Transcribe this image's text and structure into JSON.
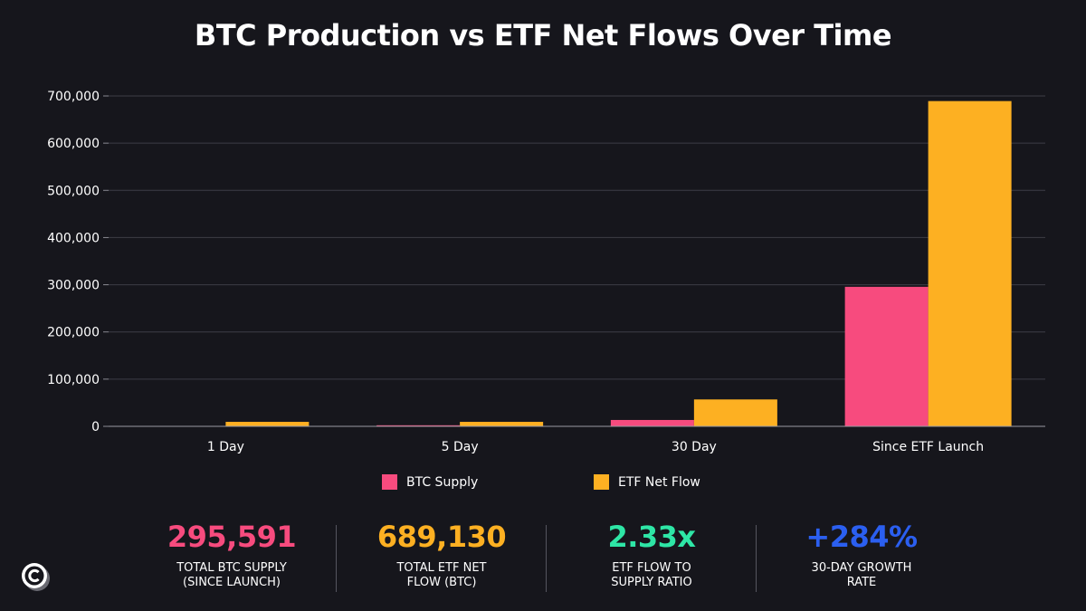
{
  "title": "BTC Production vs ETF Net Flows Over Time",
  "chart_data": {
    "type": "bar",
    "title": "BTC Production vs ETF Net Flows Over Time",
    "categories": [
      "1 Day",
      "5 Day",
      "30 Day",
      "Since ETF Launch"
    ],
    "series": [
      {
        "name": "BTC Supply",
        "color": "#f74b7e",
        "values": [
          450,
          2250,
          13500,
          295591
        ]
      },
      {
        "name": "ETF Net Flow",
        "color": "#fdb022",
        "values": [
          9500,
          9500,
          57000,
          689130
        ]
      }
    ],
    "ylim": [
      0,
      700000
    ],
    "yticks": [
      0,
      100000,
      200000,
      300000,
      400000,
      500000,
      600000,
      700000
    ],
    "ytick_labels": [
      "0",
      "100,000",
      "200,000",
      "300,000",
      "400,000",
      "500,000",
      "600,000",
      "700,000"
    ],
    "xlabel": "",
    "ylabel": "",
    "grid": true,
    "legend": "bottom-center"
  },
  "legend": [
    {
      "label": "BTC Supply",
      "color": "#f74b7e"
    },
    {
      "label": "ETF Net Flow",
      "color": "#fdb022"
    }
  ],
  "stats": [
    {
      "value": "295,591",
      "label_line1": "TOTAL BTC SUPPLY",
      "label_line2": "(SINCE LAUNCH)",
      "color": "#f74b7e"
    },
    {
      "value": "689,130",
      "label_line1": "TOTAL ETF NET",
      "label_line2": "FLOW (BTC)",
      "color": "#fdb022"
    },
    {
      "value": "2.33x",
      "label_line1": "ETF FLOW TO",
      "label_line2": "SUPPLY RATIO",
      "color": "#2ee6a6"
    },
    {
      "value": "+284%",
      "label_line1": "30-DAY GROWTH",
      "label_line2": "RATE",
      "color": "#2b5ff0"
    }
  ],
  "logo": {
    "icon": "copyright-c-logo-icon"
  }
}
